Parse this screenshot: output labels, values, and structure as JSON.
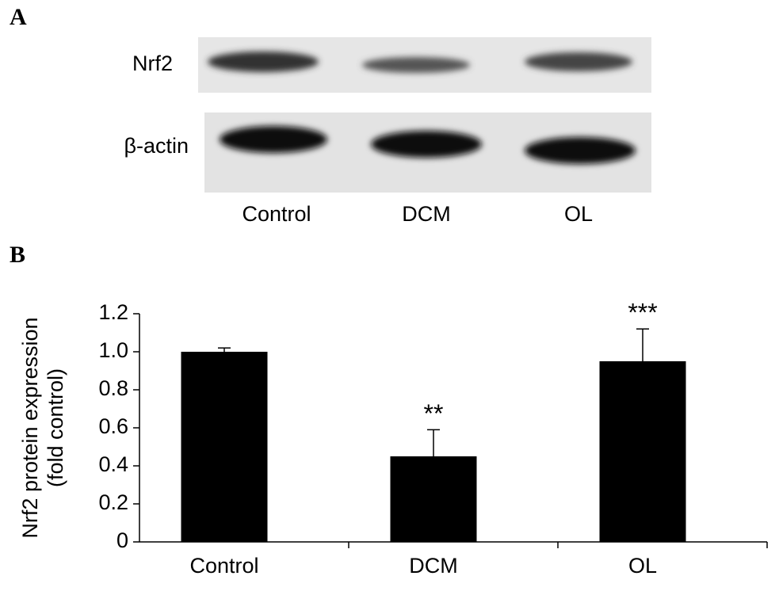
{
  "panels": [
    "A",
    "B"
  ],
  "blot": {
    "rows": [
      "Nrf2",
      "β-actin"
    ],
    "lanes": [
      "Control",
      "DCM",
      "OL"
    ]
  },
  "chart_data": {
    "type": "bar",
    "ylabel": [
      "Nrf2 protein expression",
      "(fold control)"
    ],
    "categories": [
      "Control",
      "DCM",
      "OL"
    ],
    "values": [
      1,
      0.45,
      0.95
    ],
    "errors": [
      0.02,
      0.14,
      0.17
    ],
    "annotations": [
      null,
      "**",
      "***"
    ],
    "color": "#000000",
    "ylim": [
      0,
      1.2
    ],
    "yticks": [
      0,
      0.2,
      0.4,
      0.6,
      0.8,
      {
        "value": 1,
        "label": "1.0"
      },
      1.2
    ]
  }
}
